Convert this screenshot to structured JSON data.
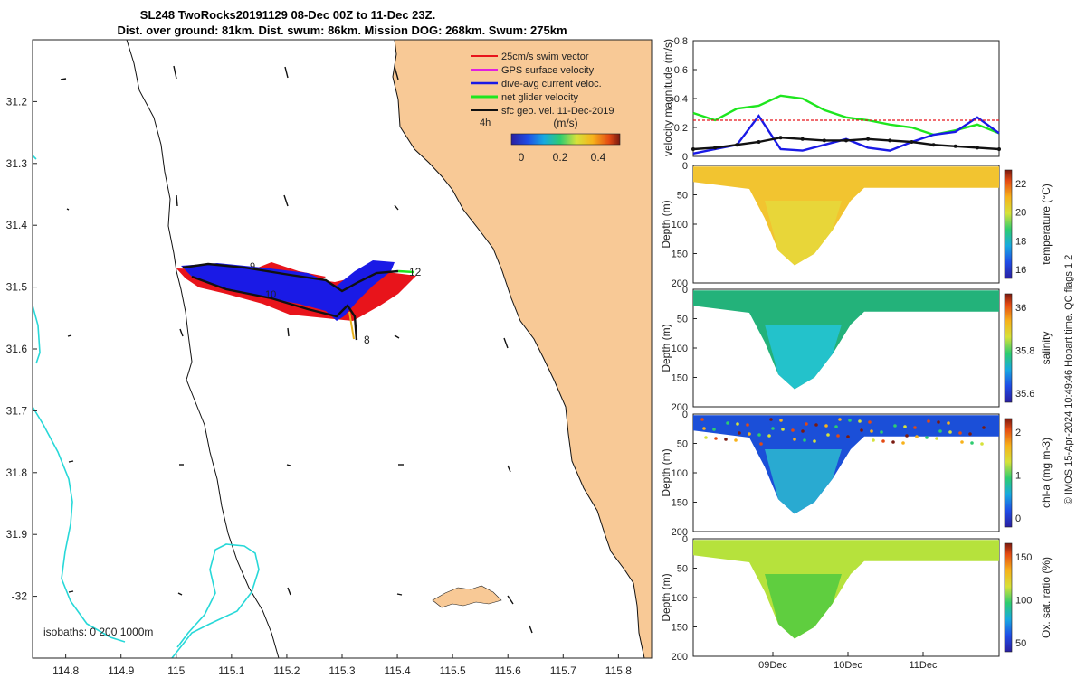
{
  "header": {
    "title_line1": "SL248 TwoRocks20191129 08-Dec 00Z to 11-Dec 23Z.",
    "title_line2": "Dist. over ground: 81km. Dist. swum: 86km. Mission DOG: 268km. Swum: 275km"
  },
  "map": {
    "legend": [
      {
        "label": "25cm/s swim vector",
        "color": "#e8141b"
      },
      {
        "label": "GPS surface velocity",
        "color": "#e020e0"
      },
      {
        "label": "dive-avg current veloc.",
        "color": "#1a1ae6"
      },
      {
        "label": "net glider velocity",
        "color": "#1ee61e"
      },
      {
        "label": "sfc geo. vel. 11-Dec-2019",
        "color": "#111111"
      }
    ],
    "speed_label": "4h",
    "colorbar_title": "(m/s)",
    "colorbar_ticks": [
      "0",
      "0.2",
      "0.4"
    ],
    "isobaths_label": "isobaths: 0   200  1000m",
    "track_labels": [
      "9",
      "10",
      "12",
      "8"
    ],
    "colors": {
      "land": "#f8c996",
      "isobath": "#27d8d8",
      "track_dive": "#1a1ae6",
      "track_swim": "#e8141b",
      "glider_net": "#1ee61e"
    }
  },
  "chart_data": [
    {
      "type": "map",
      "xlim": [
        114.74,
        115.86
      ],
      "ylim": [
        31.1,
        32.1
      ],
      "xticks": [
        "114.8",
        "114.9",
        "115",
        "115.1",
        "115.2",
        "115.3",
        "115.4",
        "115.5",
        "115.6",
        "115.7",
        "115.8"
      ],
      "yticks": [
        "31.2",
        "31.3",
        "31.4",
        "31.5",
        "31.6",
        "31.7",
        "31.8",
        "31.9",
        "-32"
      ],
      "glider_track": [
        [
          115.0,
          31.5
        ],
        [
          115.1,
          31.52
        ],
        [
          115.2,
          31.54
        ],
        [
          115.28,
          31.56
        ],
        [
          115.32,
          31.55
        ],
        [
          115.36,
          31.5
        ],
        [
          115.42,
          31.5
        ],
        [
          115.3,
          31.6
        ]
      ]
    },
    {
      "type": "line",
      "ylabel": "velocity magnitude (m/s)",
      "ylim": [
        0,
        0.8
      ],
      "yticks": [
        "0",
        "0.2",
        "0.4",
        "0.6",
        "0.8"
      ],
      "series": [
        {
          "name": "net glider velocity",
          "color": "#1ee61e",
          "values": [
            0.3,
            0.25,
            0.33,
            0.35,
            0.42,
            0.4,
            0.32,
            0.27,
            0.25,
            0.22,
            0.2,
            0.15,
            0.18,
            0.22,
            0.16
          ]
        },
        {
          "name": "dive-avg current veloc.",
          "color": "#1a1ae6",
          "values": [
            0.02,
            0.05,
            0.08,
            0.28,
            0.05,
            0.04,
            0.08,
            0.12,
            0.06,
            0.04,
            0.1,
            0.15,
            0.17,
            0.27,
            0.16
          ]
        },
        {
          "name": "sfc geo. vel.",
          "color": "#111111",
          "values": [
            0.05,
            0.06,
            0.08,
            0.1,
            0.13,
            0.12,
            0.11,
            0.11,
            0.12,
            0.11,
            0.1,
            0.08,
            0.07,
            0.06,
            0.05
          ]
        },
        {
          "name": "25cm/s swim",
          "color": "#e8141b",
          "values": [
            0.25,
            0.25,
            0.25,
            0.25,
            0.25,
            0.25,
            0.25,
            0.25,
            0.25,
            0.25,
            0.25,
            0.25,
            0.25,
            0.25,
            0.25
          ]
        }
      ]
    },
    {
      "type": "heatmap",
      "ylabel": "Depth (m)",
      "yticks": [
        "0",
        "50",
        "100",
        "150",
        "200"
      ],
      "colorbar_label": "temperature (°C)",
      "colorbar_ticks": [
        "16",
        "18",
        "20",
        "22"
      ],
      "colors": [
        "#f2c430",
        "#e7d83b"
      ]
    },
    {
      "type": "heatmap",
      "ylabel": "Depth (m)",
      "yticks": [
        "0",
        "50",
        "100",
        "150",
        "200"
      ],
      "colorbar_label": "salinity",
      "colorbar_ticks": [
        "35.6",
        "35.8",
        "36"
      ],
      "colors": [
        "#23b27a",
        "#23c3d4"
      ]
    },
    {
      "type": "heatmap",
      "ylabel": "Depth (m)",
      "yticks": [
        "0",
        "50",
        "100",
        "150",
        "200"
      ],
      "colorbar_label": "chl-a (mg m-3)",
      "colorbar_ticks": [
        "0",
        "1",
        "2"
      ],
      "colors": [
        "#1b4fd8",
        "#2bb4d0"
      ]
    },
    {
      "type": "heatmap",
      "ylabel": "Depth (m)",
      "yticks": [
        "0",
        "50",
        "100",
        "150",
        "200"
      ],
      "colorbar_label": "Ox. sat. ratio (%)",
      "colorbar_ticks": [
        "50",
        "100",
        "150"
      ],
      "xticks": [
        "09Dec",
        "10Dec",
        "11Dec"
      ],
      "colors": [
        "#b6e23c",
        "#55cc3f"
      ]
    }
  ],
  "side_note": "© IMOS 15-Apr-2024 10:49:46 Hobart time. QC flags 1  2"
}
